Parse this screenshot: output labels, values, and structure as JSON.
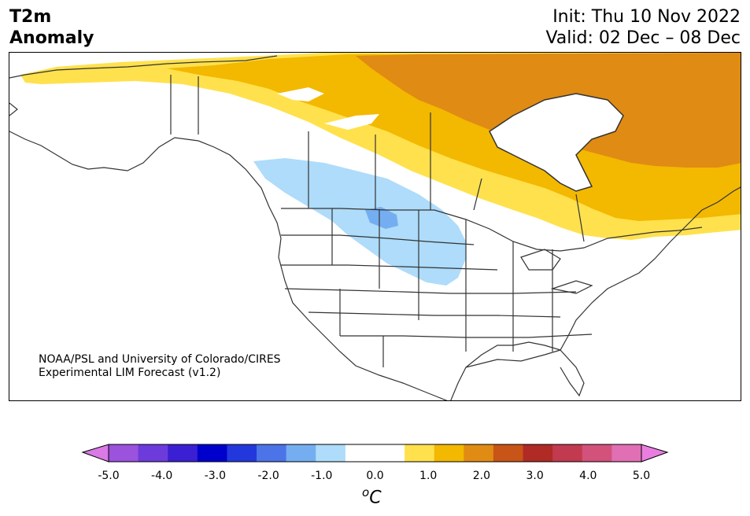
{
  "header": {
    "title_line1": "T2m",
    "title_line2": "Anomaly",
    "init": "Init: Thu 10 Nov 2022",
    "valid": "Valid: 02 Dec – 08 Dec"
  },
  "credit": {
    "line1": "NOAA/PSL and University of Colorado/CIRES",
    "line2": "Experimental LIM Forecast (v1.2)"
  },
  "colorbar": {
    "ticks": [
      "-5.0",
      "-4.0",
      "-3.0",
      "-2.0",
      "-1.0",
      "0.0",
      "1.0",
      "2.0",
      "3.0",
      "4.0",
      "5.0"
    ],
    "unit_super": "o",
    "unit": "C",
    "colors": [
      "#d97ae6",
      "#9b52dc",
      "#6d3bdb",
      "#3a20d2",
      "#0000cc",
      "#2338dc",
      "#4c74e8",
      "#75aef0",
      "#aedcfa",
      "#ffffff",
      "#ffffff",
      "#ffe14d",
      "#f3b800",
      "#e08b13",
      "#c85417",
      "#b02a26",
      "#c23a4f",
      "#d2527c",
      "#e06fb3",
      "#ea7ee0"
    ]
  },
  "map": {
    "region": "North America",
    "anomaly_colors": {
      "warm1": "#ffe14d",
      "warm2": "#f3b800",
      "warm3": "#e08b13",
      "warm4": "#c85417",
      "cool1": "#aedcfa",
      "cool2": "#75aef0"
    }
  }
}
